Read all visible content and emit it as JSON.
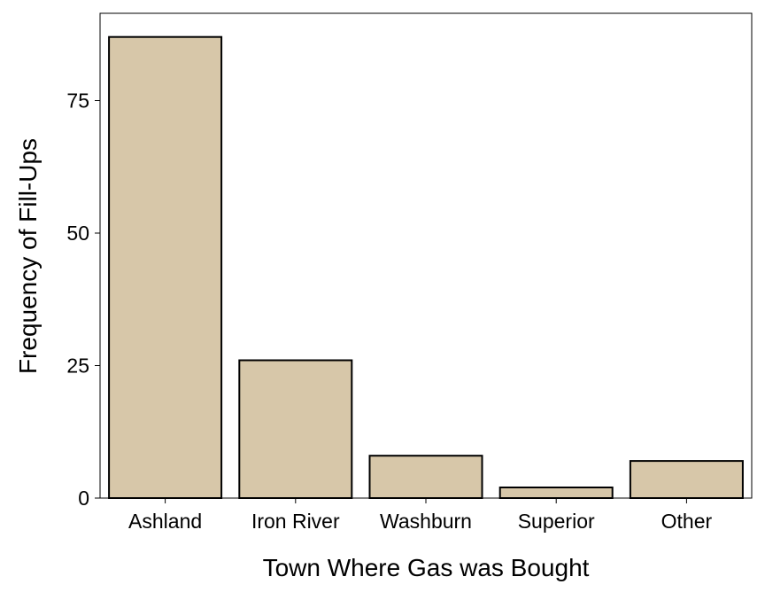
{
  "chart_data": {
    "type": "bar",
    "title": "",
    "xlabel": "Town Where Gas was Bought",
    "ylabel": "Frequency of Fill-Ups",
    "categories": [
      "Ashland",
      "Iron River",
      "Washburn",
      "Superior",
      "Other"
    ],
    "values": [
      87,
      26,
      8,
      2,
      7
    ],
    "ylim": [
      0,
      91
    ],
    "yticks": [
      0,
      25,
      50,
      75
    ],
    "ytick_labels": [
      "0",
      "25",
      "50",
      "75"
    ],
    "bar_fill": "#d7c7a9",
    "bar_stroke": "#000000",
    "grid": false,
    "legend": "none"
  }
}
